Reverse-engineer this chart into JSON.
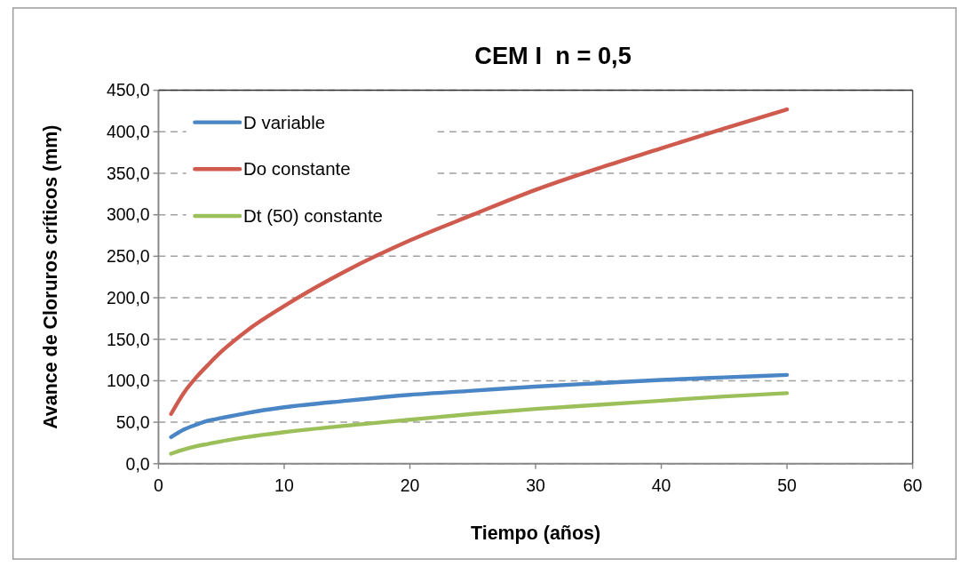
{
  "chart_data": {
    "type": "line",
    "title": "CEM I  n = 0,5",
    "xlabel": "Tiempo (años)",
    "ylabel": "Avance de Cloruros críticos (mm)",
    "x": [
      1,
      2,
      3,
      4,
      5,
      7,
      10,
      15,
      20,
      25,
      30,
      35,
      40,
      45,
      50
    ],
    "series": [
      {
        "name": "D variable",
        "color": "#4a86c5",
        "values": [
          32,
          41,
          47,
          52,
          55,
          61,
          68,
          76,
          83,
          88,
          93,
          97,
          101,
          104,
          107
        ]
      },
      {
        "name": "Do constante",
        "color": "#cf5b4f",
        "values": [
          60,
          85,
          104,
          120,
          135,
          160,
          190,
          233,
          269,
          300,
          330,
          356,
          380,
          404,
          427
        ]
      },
      {
        "name": "Dt (50) constante",
        "color": "#9bbf59",
        "values": [
          12,
          17,
          21,
          24,
          27,
          32,
          38,
          46,
          53,
          60,
          66,
          71,
          76,
          81,
          85
        ]
      }
    ],
    "xlim": [
      0,
      60
    ],
    "xticks": [
      0,
      10,
      20,
      30,
      40,
      50,
      60
    ],
    "ylim": [
      0,
      450
    ],
    "yticks": [
      {
        "value": 0,
        "label": "0,0"
      },
      {
        "value": 50,
        "label": "50,0"
      },
      {
        "value": 100,
        "label": "100,0"
      },
      {
        "value": 150,
        "label": "150,0"
      },
      {
        "value": 200,
        "label": "200,0"
      },
      {
        "value": 250,
        "label": "250,0"
      },
      {
        "value": 300,
        "label": "300,0"
      },
      {
        "value": 350,
        "label": "350,0"
      },
      {
        "value": 400,
        "label": "400,0"
      },
      {
        "value": 450,
        "label": "450,0"
      }
    ],
    "grid": "y",
    "legend": "top left",
    "line_style": "solid"
  }
}
